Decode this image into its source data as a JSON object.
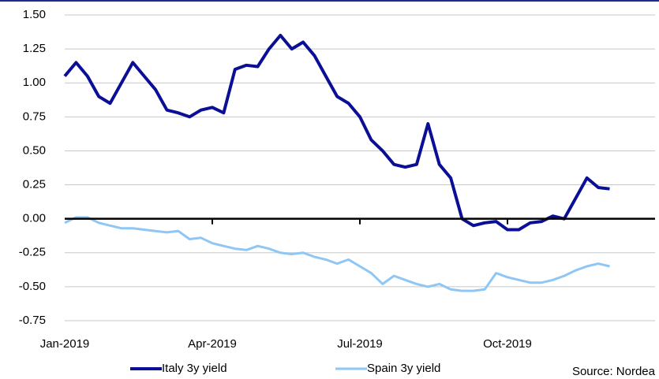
{
  "chart_data": {
    "type": "line",
    "categories": [
      "Jan-2019",
      null,
      null,
      null,
      null,
      null,
      null,
      null,
      null,
      null,
      null,
      null,
      null,
      "Apr-2019",
      null,
      null,
      null,
      null,
      null,
      null,
      null,
      null,
      null,
      null,
      null,
      null,
      "Jul-2019",
      null,
      null,
      null,
      null,
      null,
      null,
      null,
      null,
      null,
      null,
      null,
      null,
      "Oct-2019",
      null,
      null,
      null,
      null,
      null,
      null,
      null,
      null,
      null,
      null,
      null,
      null,
      null
    ],
    "series": [
      {
        "name": "Italy 3y yield",
        "color": "#0a0f96",
        "values": [
          1.05,
          1.15,
          1.05,
          0.9,
          0.85,
          1.0,
          1.15,
          1.05,
          0.95,
          0.8,
          0.78,
          0.75,
          0.8,
          0.82,
          0.78,
          1.1,
          1.13,
          1.12,
          1.25,
          1.35,
          1.25,
          1.3,
          1.2,
          1.05,
          0.9,
          0.85,
          0.75,
          0.58,
          0.5,
          0.4,
          0.38,
          0.4,
          0.7,
          0.4,
          0.3,
          0.0,
          -0.05,
          -0.03,
          -0.02,
          -0.08,
          -0.08,
          -0.03,
          -0.02,
          0.02,
          0.0,
          0.15,
          0.3,
          0.23,
          0.22,
          null,
          null,
          null,
          null
        ]
      },
      {
        "name": "Spain 3y yield",
        "color": "#8ec6f5",
        "values": [
          -0.03,
          0.01,
          0.01,
          -0.03,
          -0.05,
          -0.07,
          -0.07,
          -0.08,
          -0.09,
          -0.1,
          -0.09,
          -0.15,
          -0.14,
          -0.18,
          -0.2,
          -0.22,
          -0.23,
          -0.2,
          -0.22,
          -0.25,
          -0.26,
          -0.25,
          -0.28,
          -0.3,
          -0.33,
          -0.3,
          -0.35,
          -0.4,
          -0.48,
          -0.42,
          -0.45,
          -0.48,
          -0.5,
          -0.48,
          -0.52,
          -0.53,
          -0.53,
          -0.52,
          -0.4,
          -0.43,
          -0.45,
          -0.47,
          -0.47,
          -0.45,
          -0.42,
          -0.38,
          -0.35,
          -0.33,
          -0.35,
          null,
          null,
          null,
          null
        ]
      }
    ],
    "ylim": [
      -0.75,
      1.5
    ],
    "yticks": [
      {
        "value": 1.5,
        "label": "1.50"
      },
      {
        "value": 1.25,
        "label": "1.25"
      },
      {
        "value": 1.0,
        "label": "1.00"
      },
      {
        "value": 0.75,
        "label": "0.75"
      },
      {
        "value": 0.5,
        "label": "0.50"
      },
      {
        "value": 0.25,
        "label": "0.25"
      },
      {
        "value": 0.0,
        "label": "0.00"
      },
      {
        "value": -0.25,
        "label": "-0.25"
      },
      {
        "value": -0.5,
        "label": "-0.50"
      },
      {
        "value": -0.75,
        "label": "-0.75"
      }
    ],
    "grid": true,
    "legend": "bottom",
    "source": "Source: Nordea"
  }
}
